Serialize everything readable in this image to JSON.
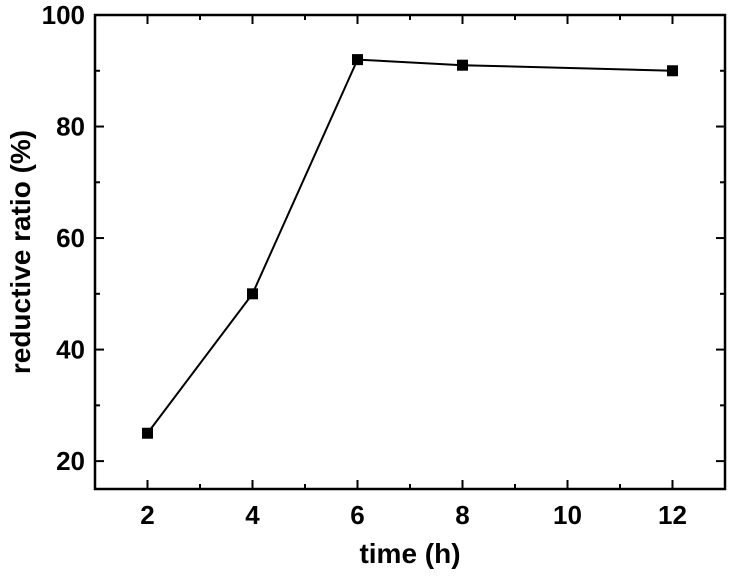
{
  "chart_data": {
    "type": "line",
    "title": "",
    "xlabel": "time (h)",
    "ylabel": "reductive ratio (%)",
    "x": [
      2,
      4,
      6,
      8,
      12
    ],
    "series": [
      {
        "values": [
          25,
          50,
          92,
          91,
          90
        ],
        "color": "#000000",
        "marker": "square"
      }
    ],
    "xticks": [
      2,
      4,
      6,
      8,
      10,
      12
    ],
    "yticks": [
      20,
      40,
      60,
      80,
      100
    ],
    "xlim": [
      1,
      13
    ],
    "ylim": [
      15,
      100
    ],
    "grid": false,
    "legend": "none"
  }
}
